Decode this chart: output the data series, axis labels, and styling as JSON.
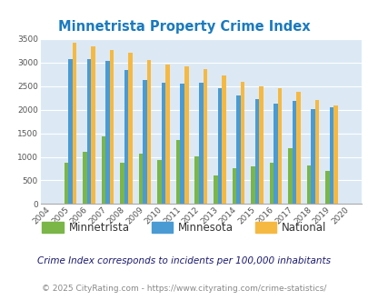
{
  "title": "Minnetrista Property Crime Index",
  "years": [
    2004,
    2005,
    2006,
    2007,
    2008,
    2009,
    2010,
    2011,
    2012,
    2013,
    2014,
    2015,
    2016,
    2017,
    2018,
    2019,
    2020
  ],
  "minnetrista": [
    0,
    880,
    1100,
    1430,
    880,
    1060,
    940,
    1350,
    1020,
    610,
    760,
    790,
    880,
    1190,
    820,
    710,
    0
  ],
  "minnesota": [
    0,
    3080,
    3080,
    3040,
    2850,
    2630,
    2570,
    2560,
    2570,
    2460,
    2310,
    2230,
    2130,
    2190,
    2010,
    2060,
    0
  ],
  "national": [
    0,
    3420,
    3340,
    3260,
    3200,
    3050,
    2960,
    2910,
    2870,
    2730,
    2600,
    2500,
    2460,
    2370,
    2210,
    2090,
    0
  ],
  "color_minnetrista": "#7ab648",
  "color_minnesota": "#4a9bd4",
  "color_national": "#f5b942",
  "bg_color": "#dce9f5",
  "ylim": [
    0,
    3500
  ],
  "yticks": [
    0,
    500,
    1000,
    1500,
    2000,
    2500,
    3000,
    3500
  ],
  "subtitle": "Crime Index corresponds to incidents per 100,000 inhabitants",
  "footer": "© 2025 CityRating.com - https://www.cityrating.com/crime-statistics/",
  "title_color": "#1a7abf",
  "subtitle_color": "#1a1a6e",
  "footer_color": "#888888"
}
